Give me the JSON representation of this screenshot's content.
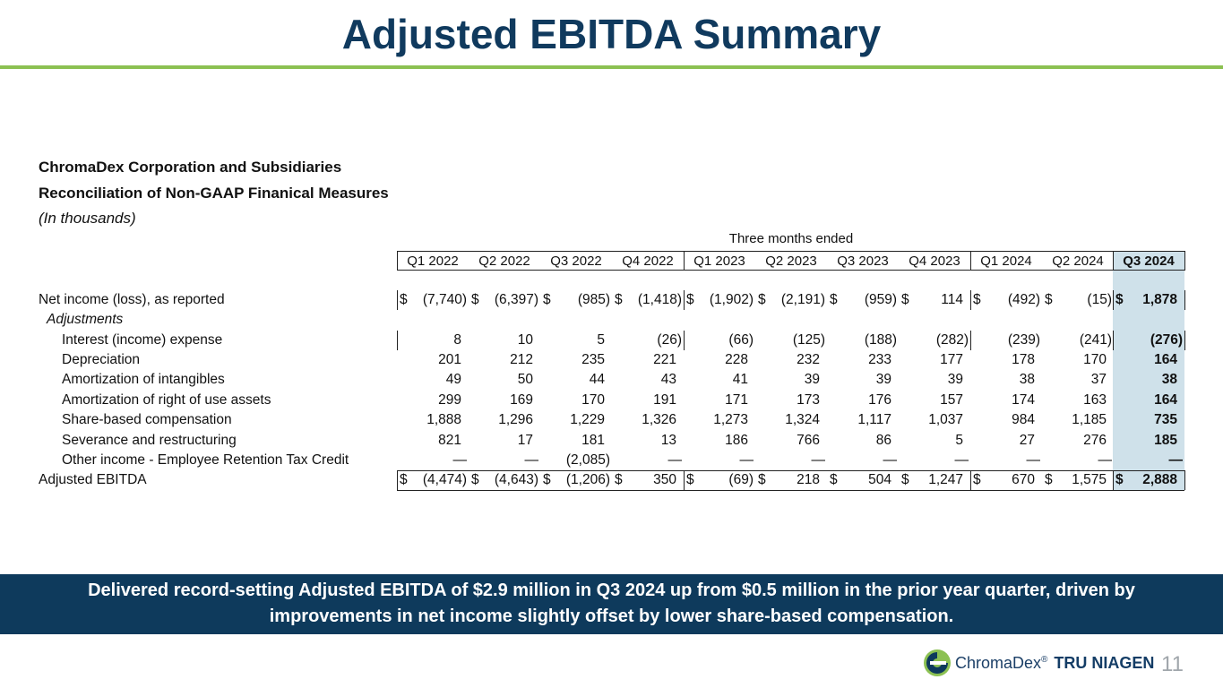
{
  "title": "Adjusted EBITDA Summary",
  "header": {
    "company": "ChromaDex Corporation and Subsidiaries",
    "report": "Reconciliation of Non-GAAP Finanical Measures",
    "units": "(In thousands)",
    "period_label": "Three months ended"
  },
  "columns": [
    "Q1 2022",
    "Q2 2022",
    "Q3 2022",
    "Q4 2022",
    "Q1 2023",
    "Q2 2023",
    "Q3 2023",
    "Q4 2023",
    "Q1 2024",
    "Q2 2024",
    "Q3 2024"
  ],
  "dollar_sign": "$",
  "rows": [
    {
      "label": "Net income (loss), as reported",
      "values": [
        "(7,740)",
        "(6,397)",
        "(985)",
        "(1,418)",
        "(1,902)",
        "(2,191)",
        "(959)",
        "114",
        "(492)",
        "(15)",
        "1,878"
      ],
      "dollar": true
    },
    {
      "label": "Adjustments",
      "values": []
    },
    {
      "label": "Interest (income) expense",
      "values": [
        "8",
        "10",
        "5",
        "(26)",
        "(66)",
        "(125)",
        "(188)",
        "(282)",
        "(239)",
        "(241)",
        "(276)"
      ]
    },
    {
      "label": "Depreciation",
      "values": [
        "201",
        "212",
        "235",
        "221",
        "228",
        "232",
        "233",
        "177",
        "178",
        "170",
        "164"
      ]
    },
    {
      "label": "Amortization of intangibles",
      "values": [
        "49",
        "50",
        "44",
        "43",
        "41",
        "39",
        "39",
        "39",
        "38",
        "37",
        "38"
      ]
    },
    {
      "label": "Amortization of right of use assets",
      "values": [
        "299",
        "169",
        "170",
        "191",
        "171",
        "173",
        "176",
        "157",
        "174",
        "163",
        "164"
      ]
    },
    {
      "label": "Share-based compensation",
      "values": [
        "1,888",
        "1,296",
        "1,229",
        "1,326",
        "1,273",
        "1,324",
        "1,117",
        "1,037",
        "984",
        "1,185",
        "735"
      ]
    },
    {
      "label": "Severance and restructuring",
      "values": [
        "821",
        "17",
        "181",
        "13",
        "186",
        "766",
        "86",
        "5",
        "27",
        "276",
        "185"
      ]
    },
    {
      "label": "Other income - Employee Retention Tax Credit",
      "values": [
        "—",
        "—",
        "(2,085)",
        "—",
        "—",
        "—",
        "—",
        "—",
        "—",
        "—",
        "—"
      ]
    },
    {
      "label": "Adjusted EBITDA",
      "values": [
        "(4,474)",
        "(4,643)",
        "(1,206)",
        "350",
        "(69)",
        "218",
        "504",
        "1,247",
        "670",
        "1,575",
        "2,888"
      ],
      "dollar": true
    }
  ],
  "banner": {
    "line1": "Delivered record-setting Adjusted EBITDA of $2.9 million in Q3 2024 up from $0.5 million in the prior year quarter, driven by",
    "line2": "improvements in net income slightly offset by lower share-based compensation."
  },
  "footer": {
    "brand": "ChromaDex",
    "reg": "®",
    "product": "TRU NIAGEN",
    "page_number": "11"
  },
  "colors": {
    "title": "#103a5e",
    "accent_rule": "#8cc152",
    "banner_bg": "#0e3a5c",
    "highlight_col": "#cfe1ea"
  }
}
